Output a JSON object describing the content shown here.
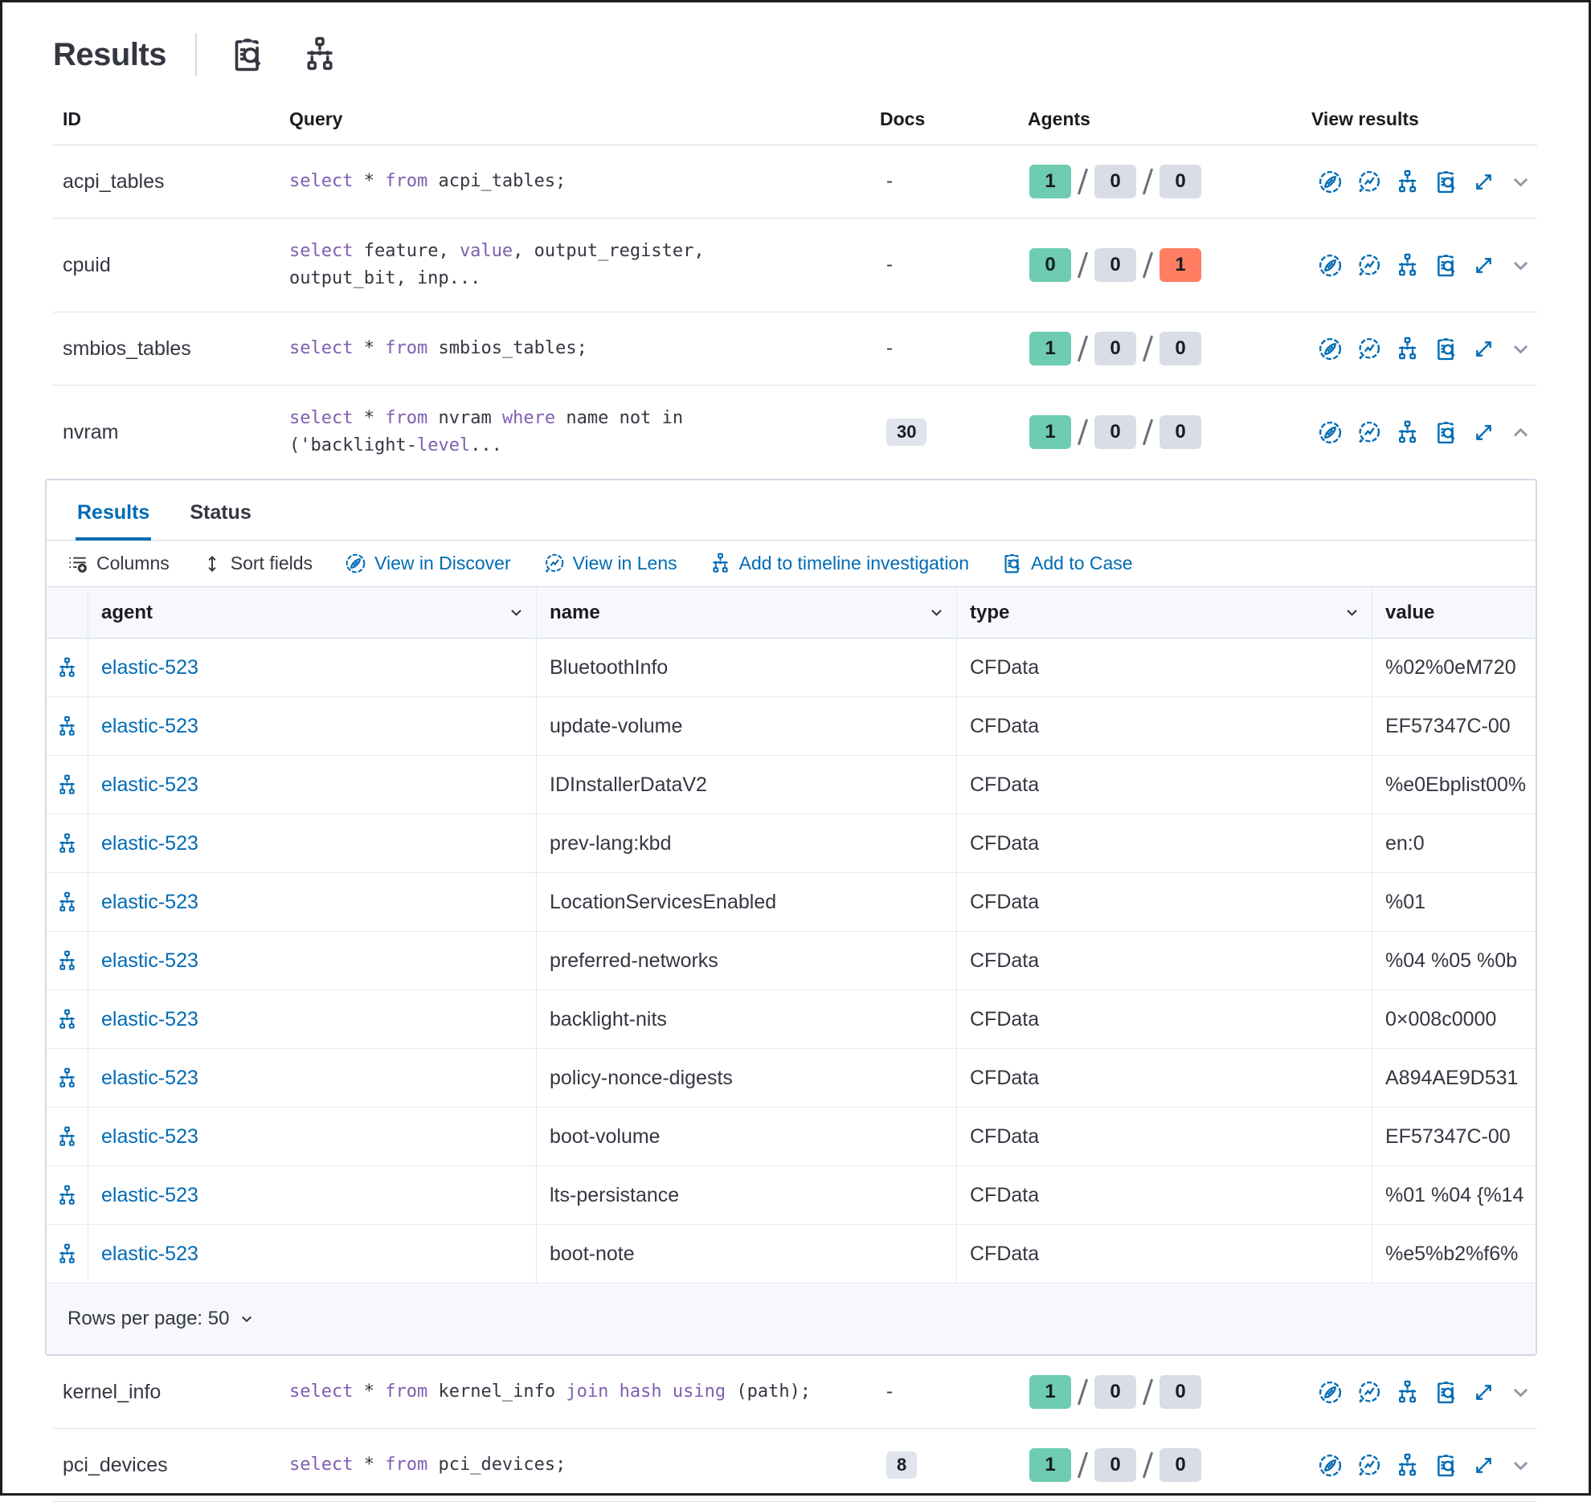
{
  "header": {
    "title": "Results",
    "icons": [
      "inspect-icon",
      "timeline-icon"
    ]
  },
  "queries": {
    "columns": {
      "id": "ID",
      "query": "Query",
      "docs": "Docs",
      "agents": "Agents",
      "view": "View results"
    },
    "panel_after_index": 3,
    "view_results_icons": [
      "discover",
      "lens",
      "timeline",
      "inspect",
      "expand"
    ],
    "rows": [
      {
        "id": "acpi_tables",
        "query_lines": [
          [
            {
              "t": "select",
              "k": 1
            },
            {
              "t": " * "
            },
            {
              "t": "from",
              "k": 1
            },
            {
              "t": " acpi_tables;"
            }
          ]
        ],
        "docs": {
          "label": "-",
          "badge": false
        },
        "agents": [
          {
            "count": "1",
            "variant": "success"
          },
          {
            "count": "0",
            "variant": "default"
          },
          {
            "count": "0",
            "variant": "default"
          }
        ],
        "expanded": false
      },
      {
        "id": "cpuid",
        "query_lines": [
          [
            {
              "t": "select",
              "k": 1
            },
            {
              "t": " feature, "
            },
            {
              "t": "value",
              "k": 1
            },
            {
              "t": ", output_register,"
            }
          ],
          [
            {
              "t": "output_bit, inp..."
            }
          ]
        ],
        "docs": {
          "label": "-",
          "badge": false
        },
        "agents": [
          {
            "count": "0",
            "variant": "success"
          },
          {
            "count": "0",
            "variant": "default"
          },
          {
            "count": "1",
            "variant": "danger"
          }
        ],
        "expanded": false
      },
      {
        "id": "smbios_tables",
        "query_lines": [
          [
            {
              "t": "select",
              "k": 1
            },
            {
              "t": " * "
            },
            {
              "t": "from",
              "k": 1
            },
            {
              "t": " smbios_tables;"
            }
          ]
        ],
        "docs": {
          "label": "-",
          "badge": false
        },
        "agents": [
          {
            "count": "1",
            "variant": "success"
          },
          {
            "count": "0",
            "variant": "default"
          },
          {
            "count": "0",
            "variant": "default"
          }
        ],
        "expanded": false
      },
      {
        "id": "nvram",
        "query_lines": [
          [
            {
              "t": "select",
              "k": 1
            },
            {
              "t": " * "
            },
            {
              "t": "from",
              "k": 1
            },
            {
              "t": " nvram "
            },
            {
              "t": "where",
              "k": 1
            },
            {
              "t": " name not in"
            }
          ],
          [
            {
              "t": "('backlight-"
            },
            {
              "t": "level",
              "k": 1
            },
            {
              "t": "..."
            }
          ]
        ],
        "docs": {
          "label": "30",
          "badge": true
        },
        "agents": [
          {
            "count": "1",
            "variant": "success"
          },
          {
            "count": "0",
            "variant": "default"
          },
          {
            "count": "0",
            "variant": "default"
          }
        ],
        "expanded": true
      },
      {
        "id": "kernel_info",
        "query_lines": [
          [
            {
              "t": "select",
              "k": 1
            },
            {
              "t": " * "
            },
            {
              "t": "from",
              "k": 1
            },
            {
              "t": " kernel_info "
            },
            {
              "t": "join hash using",
              "k": 1
            },
            {
              "t": " (path);"
            }
          ]
        ],
        "docs": {
          "label": "-",
          "badge": false
        },
        "agents": [
          {
            "count": "1",
            "variant": "success"
          },
          {
            "count": "0",
            "variant": "default"
          },
          {
            "count": "0",
            "variant": "default"
          }
        ],
        "expanded": false
      },
      {
        "id": "pci_devices",
        "query_lines": [
          [
            {
              "t": "select",
              "k": 1
            },
            {
              "t": " * "
            },
            {
              "t": "from",
              "k": 1
            },
            {
              "t": " pci_devices;"
            }
          ]
        ],
        "docs": {
          "label": "8",
          "badge": true
        },
        "agents": [
          {
            "count": "1",
            "variant": "success"
          },
          {
            "count": "0",
            "variant": "default"
          },
          {
            "count": "0",
            "variant": "default"
          }
        ],
        "expanded": false
      }
    ]
  },
  "panel": {
    "tabs": [
      {
        "label": "Results",
        "active": true
      },
      {
        "label": "Status",
        "active": false
      }
    ],
    "toolbar": [
      {
        "label": "Columns",
        "icon": "columns-icon",
        "style": "dark"
      },
      {
        "label": "Sort fields",
        "icon": "sort-icon",
        "style": "dark"
      },
      {
        "label": "View in Discover",
        "icon": "discover-icon",
        "style": "link"
      },
      {
        "label": "View in Lens",
        "icon": "lens-icon",
        "style": "link"
      },
      {
        "label": "Add to timeline investigation",
        "icon": "timeline-icon",
        "style": "link"
      },
      {
        "label": "Add to Case",
        "icon": "inspect-icon",
        "style": "link"
      }
    ],
    "grid": {
      "columns": [
        {
          "label": "agent",
          "sortable": true
        },
        {
          "label": "name",
          "sortable": true
        },
        {
          "label": "type",
          "sortable": true
        },
        {
          "label": "value",
          "sortable": false
        }
      ],
      "rows": [
        {
          "agent": "elastic-523",
          "name": "BluetoothInfo",
          "type": "CFData",
          "value": "%02%0eM720"
        },
        {
          "agent": "elastic-523",
          "name": "update-volume",
          "type": "CFData",
          "value": "EF57347C-00"
        },
        {
          "agent": "elastic-523",
          "name": "IDInstallerDataV2",
          "type": "CFData",
          "value": "%e0Ebplist00%"
        },
        {
          "agent": "elastic-523",
          "name": "prev-lang:kbd",
          "type": "CFData",
          "value": "en:0"
        },
        {
          "agent": "elastic-523",
          "name": "LocationServicesEnabled",
          "type": "CFData",
          "value": "%01"
        },
        {
          "agent": "elastic-523",
          "name": "preferred-networks",
          "type": "CFData",
          "value": "%04 %05 %0b"
        },
        {
          "agent": "elastic-523",
          "name": "backlight-nits",
          "type": "CFData",
          "value": "0×008c0000"
        },
        {
          "agent": "elastic-523",
          "name": "policy-nonce-digests",
          "type": "CFData",
          "value": "A894AE9D531"
        },
        {
          "agent": "elastic-523",
          "name": "boot-volume",
          "type": "CFData",
          "value": "EF57347C-00"
        },
        {
          "agent": "elastic-523",
          "name": "lts-persistance",
          "type": "CFData",
          "value": "%01 %04 {%14"
        },
        {
          "agent": "elastic-523",
          "name": "boot-note",
          "type": "CFData",
          "value": "%e5%b2%f6%"
        }
      ]
    },
    "footer": {
      "rows_per_page_label": "Rows per page: 50"
    }
  },
  "colors": {
    "accent_blue": "#006bb4",
    "keyword_purple": "#7e5fb0",
    "badge_success": "#6dccb1",
    "badge_default": "#d9dde6",
    "badge_danger": "#ff7e62",
    "border": "#d3dae6"
  }
}
